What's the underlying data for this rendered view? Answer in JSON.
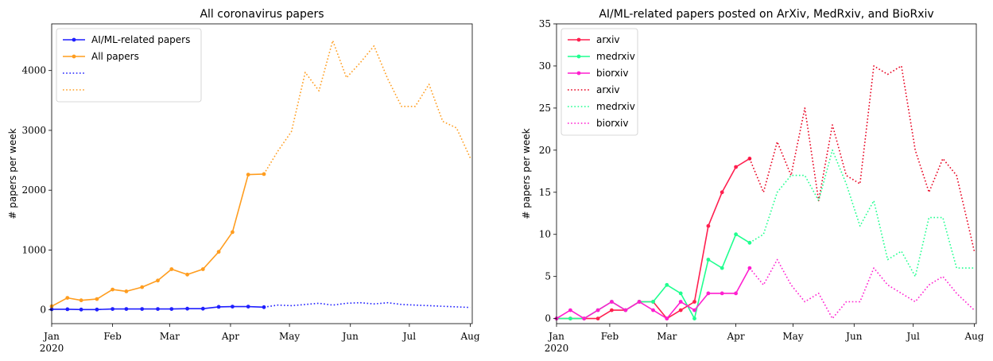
{
  "chart_data": [
    {
      "type": "line",
      "title": "All coronavirus papers",
      "xlabel": "",
      "ylabel": "# papers per week",
      "ylim": [
        -230,
        4780
      ],
      "yticks": [
        0,
        1000,
        2000,
        3000,
        4000
      ],
      "ytick_labels": [
        "0",
        "1000",
        "2000",
        "3000",
        "4000"
      ],
      "xlim": [
        0,
        214
      ],
      "xticks": [
        0,
        31,
        60,
        91,
        121,
        152,
        182,
        213
      ],
      "xtick_labels": [
        "Jan",
        "Feb",
        "Mar",
        "Apr",
        "May",
        "Jun",
        "Jul",
        "Aug"
      ],
      "xtick_sublabel": "2020",
      "legend": "upper left",
      "grid": false,
      "series": [
        {
          "name": "AI/ML-related papers",
          "style": "solid",
          "marker": true,
          "color": "#1f1fff",
          "x": [
            0,
            8,
            15,
            23,
            31,
            38,
            46,
            54,
            61,
            69,
            77,
            85,
            92,
            100,
            108
          ],
          "y": [
            10,
            10,
            5,
            5,
            15,
            15,
            15,
            15,
            15,
            20,
            20,
            50,
            55,
            55,
            45
          ]
        },
        {
          "name": "All papers",
          "style": "solid",
          "marker": true,
          "color": "#ff9d1f",
          "x": [
            0,
            8,
            15,
            23,
            31,
            38,
            46,
            54,
            61,
            69,
            77,
            85,
            92,
            100,
            108
          ],
          "y": [
            60,
            200,
            160,
            180,
            340,
            310,
            380,
            490,
            680,
            590,
            680,
            970,
            1300,
            2260,
            2270
          ]
        },
        {
          "name": "",
          "style": "dotted",
          "marker": false,
          "color": "#1f1fff",
          "x": [
            108,
            115,
            122,
            129,
            136,
            143,
            150,
            157,
            164,
            171,
            178,
            185,
            192,
            199,
            206,
            213
          ],
          "y": [
            45,
            80,
            70,
            90,
            110,
            80,
            110,
            120,
            100,
            120,
            90,
            80,
            70,
            60,
            50,
            40
          ]
        },
        {
          "name": "",
          "style": "dotted",
          "marker": false,
          "color": "#ff9d1f",
          "x": [
            108,
            115,
            122,
            129,
            136,
            143,
            150,
            157,
            164,
            171,
            178,
            185,
            192,
            199,
            206,
            213
          ],
          "y": [
            2270,
            2650,
            2980,
            3970,
            3660,
            4500,
            3880,
            4130,
            4410,
            3860,
            3400,
            3400,
            3770,
            3150,
            3040,
            2540
          ]
        }
      ]
    },
    {
      "type": "line",
      "title": "AI/ML-related papers posted on ArXiv, MedRxiv, and BioRxiv",
      "xlabel": "",
      "ylabel": "# papers per week",
      "ylim": [
        -0.6,
        35
      ],
      "yticks": [
        0,
        5,
        10,
        15,
        20,
        25,
        30,
        35
      ],
      "ytick_labels": [
        "0",
        "5",
        "10",
        "15",
        "20",
        "25",
        "30",
        "35"
      ],
      "xlim": [
        0,
        213
      ],
      "xticks": [
        0,
        27,
        56,
        91,
        120,
        151,
        181,
        212
      ],
      "xtick_labels": [
        "Jan",
        "Feb",
        "Mar",
        "Apr",
        "May",
        "Jun",
        "Jul",
        "Aug"
      ],
      "xtick_sublabel": "2020",
      "legend": "upper left",
      "grid": false,
      "series": [
        {
          "name": "arxiv",
          "style": "solid",
          "marker": true,
          "color": "#ff1f4f",
          "x": [
            0,
            7,
            14,
            21,
            28,
            35,
            42,
            49,
            56,
            63,
            70,
            77,
            84,
            91,
            98
          ],
          "y": [
            0,
            0,
            0,
            0,
            1,
            1,
            2,
            2,
            0,
            1,
            2,
            11,
            15,
            18,
            19
          ]
        },
        {
          "name": "medrxiv",
          "style": "solid",
          "marker": true,
          "color": "#1fff8f",
          "x": [
            0,
            7,
            14,
            21,
            28,
            35,
            42,
            49,
            56,
            63,
            70,
            77,
            84,
            91,
            98
          ],
          "y": [
            0,
            0,
            0,
            1,
            2,
            1,
            2,
            2,
            4,
            3,
            0,
            7,
            6,
            10,
            9
          ]
        },
        {
          "name": "biorxiv",
          "style": "solid",
          "marker": true,
          "color": "#ff1fcf",
          "x": [
            0,
            7,
            14,
            21,
            28,
            35,
            42,
            49,
            56,
            63,
            70,
            77,
            84,
            91,
            98
          ],
          "y": [
            0,
            1,
            0,
            1,
            2,
            1,
            2,
            1,
            0,
            2,
            1,
            3,
            3,
            3,
            6
          ]
        },
        {
          "name": "arxiv",
          "style": "dotted",
          "marker": false,
          "color": "#e8001f",
          "x": [
            98,
            105,
            112,
            119,
            126,
            133,
            140,
            147,
            154,
            161,
            168,
            175,
            182,
            189,
            196,
            203,
            212
          ],
          "y": [
            19,
            15,
            21,
            17,
            25,
            14,
            23,
            17,
            16,
            30,
            29,
            30,
            20,
            15,
            19,
            17,
            8
          ]
        },
        {
          "name": "medrxiv",
          "style": "dotted",
          "marker": false,
          "color": "#1fff8f",
          "x": [
            98,
            105,
            112,
            119,
            126,
            133,
            140,
            147,
            154,
            161,
            168,
            175,
            182,
            189,
            196,
            203,
            212
          ],
          "y": [
            9,
            10,
            15,
            17,
            17,
            14,
            20,
            16,
            11,
            14,
            7,
            8,
            5,
            12,
            12,
            6,
            6
          ]
        },
        {
          "name": "biorxiv",
          "style": "dotted",
          "marker": false,
          "color": "#ff1fcf",
          "x": [
            98,
            105,
            112,
            119,
            126,
            133,
            140,
            147,
            154,
            161,
            168,
            175,
            182,
            189,
            196,
            203,
            212
          ],
          "y": [
            6,
            4,
            7,
            4,
            2,
            3,
            0,
            2,
            2,
            6,
            4,
            3,
            2,
            4,
            5,
            3,
            1
          ]
        }
      ]
    }
  ]
}
